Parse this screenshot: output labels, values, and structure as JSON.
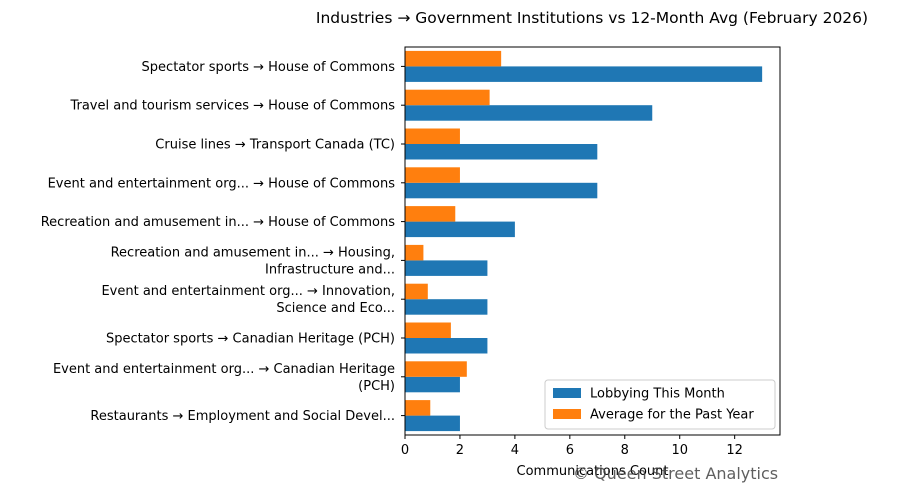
{
  "chart_data": {
    "type": "bar",
    "orientation": "horizontal",
    "title": "Industries → Government Institutions vs 12-Month Avg (February 2026)",
    "xlabel": "Communications Count",
    "ylabel": "",
    "xlim": [
      0,
      13.65
    ],
    "xticks": [
      0,
      2,
      4,
      6,
      8,
      10,
      12
    ],
    "grid": false,
    "legend_position": "lower-right",
    "categories": [
      [
        "Spectator sports → House of Commons"
      ],
      [
        "Travel and tourism services → House of Commons"
      ],
      [
        "Cruise lines → Transport Canada (TC)"
      ],
      [
        "Event and entertainment org... → House of Commons"
      ],
      [
        "Recreation and amusement in... → House of Commons"
      ],
      [
        "Recreation and amusement in... → Housing,",
        "Infrastructure and..."
      ],
      [
        "Event and entertainment org... → Innovation,",
        "Science and Eco..."
      ],
      [
        "Spectator sports → Canadian Heritage (PCH)"
      ],
      [
        "Event and entertainment org... → Canadian Heritage",
        "(PCH)"
      ],
      [
        "Restaurants → Employment and Social Devel..."
      ]
    ],
    "series": [
      {
        "name": "Lobbying This Month",
        "color": "#1f77b4",
        "values": [
          13,
          9,
          7,
          7,
          4,
          3,
          3,
          3,
          2,
          2
        ]
      },
      {
        "name": "Average for the Past Year",
        "color": "#ff7f0e",
        "values": [
          3.5,
          3.08,
          2,
          2,
          1.83,
          0.67,
          0.83,
          1.67,
          2.25,
          0.92
        ]
      }
    ]
  },
  "watermark": "© Queen Street Analytics"
}
